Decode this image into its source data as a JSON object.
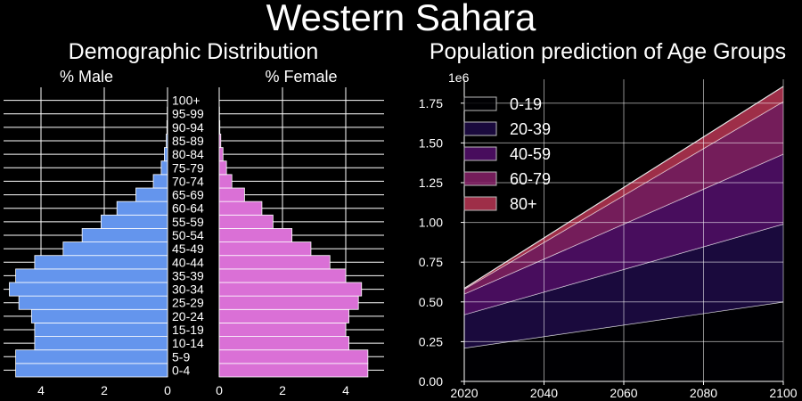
{
  "suptitle": "Western Sahara",
  "pyramid": {
    "title": "Demographic Distribution",
    "male_label": "% Male",
    "female_label": "% Female",
    "male_color": "#6495ED",
    "female_color": "#DA70D6",
    "tick_labels": [
      "4",
      "2",
      "0"
    ],
    "female_tick_labels": [
      "0",
      "2",
      "4"
    ]
  },
  "area": {
    "title": "Population prediction of Age Groups",
    "offset_label": "1e6",
    "y_tick_labels": [
      "0.00",
      "0.25",
      "0.50",
      "0.75",
      "1.00",
      "1.25",
      "1.50",
      "1.75"
    ],
    "x_tick_labels": [
      "2020",
      "2040",
      "2060",
      "2080",
      "2100"
    ],
    "colors": [
      "#000004",
      "#1f0c48",
      "#550f6d",
      "#88226a",
      "#ba3655",
      "#e35933"
    ]
  },
  "chart_data": [
    {
      "type": "bar",
      "orientation": "horizontal",
      "title": "Demographic Distribution",
      "categories": [
        "0-4",
        "5-9",
        "10-14",
        "15-19",
        "20-24",
        "25-29",
        "30-34",
        "35-39",
        "40-44",
        "45-49",
        "50-54",
        "55-59",
        "60-64",
        "65-69",
        "70-74",
        "75-79",
        "80-84",
        "85-89",
        "90-94",
        "95-99",
        "100+"
      ],
      "xlim": [
        0,
        5
      ],
      "series": [
        {
          "name": "% Male",
          "values": [
            4.8,
            4.8,
            4.2,
            4.2,
            4.3,
            4.7,
            5.0,
            4.8,
            4.2,
            3.3,
            2.7,
            2.1,
            1.6,
            1.0,
            0.45,
            0.2,
            0.1,
            0.04,
            0.02,
            0.01,
            0.0
          ]
        },
        {
          "name": "% Female",
          "values": [
            4.7,
            4.7,
            4.1,
            4.0,
            4.1,
            4.4,
            4.5,
            4.0,
            3.5,
            2.9,
            2.3,
            1.7,
            1.35,
            0.8,
            0.4,
            0.23,
            0.12,
            0.05,
            0.02,
            0.01,
            0.0
          ]
        }
      ]
    },
    {
      "type": "area",
      "stacked": true,
      "title": "Population prediction of Age Groups",
      "x": [
        2020,
        2100
      ],
      "xlim": [
        2020,
        2100
      ],
      "ylim": [
        0,
        1900000
      ],
      "legend_position": "top-left",
      "series": [
        {
          "name": "0-19",
          "values": [
            210000,
            500000
          ]
        },
        {
          "name": "20-39",
          "values": [
            210000,
            490000
          ]
        },
        {
          "name": "40-59",
          "values": [
            130000,
            440000
          ]
        },
        {
          "name": "60-79",
          "values": [
            30000,
            330000
          ]
        },
        {
          "name": "80+",
          "values": [
            5000,
            95000
          ]
        }
      ]
    }
  ]
}
